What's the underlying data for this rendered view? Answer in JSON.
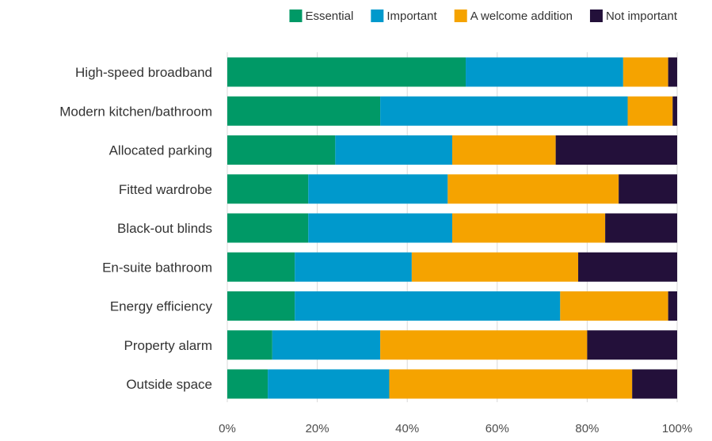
{
  "chart_data": {
    "type": "bar",
    "orientation": "horizontal",
    "stacked": true,
    "categories": [
      "High-speed broadband",
      "Modern kitchen/bathroom",
      "Allocated parking",
      "Fitted wardrobe",
      "Black-out blinds",
      "En-suite bathroom",
      "Energy efficiency",
      "Property alarm",
      "Outside space"
    ],
    "series": [
      {
        "name": "Essential",
        "color": "#009966",
        "values": [
          53,
          34,
          24,
          18,
          18,
          15,
          15,
          10,
          9
        ]
      },
      {
        "name": "Important",
        "color": "#0099cc",
        "values": [
          35,
          55,
          26,
          31,
          32,
          26,
          59,
          24,
          27
        ]
      },
      {
        "name": "A welcome addition",
        "color": "#f5a300",
        "values": [
          10,
          10,
          23,
          38,
          34,
          37,
          24,
          46,
          54
        ]
      },
      {
        "name": "Not important",
        "color": "#23103a",
        "values": [
          2,
          1,
          27,
          13,
          16,
          22,
          2,
          20,
          10
        ]
      }
    ],
    "xlim": [
      0,
      100
    ],
    "x_ticks": [
      "0%",
      "20%",
      "40%",
      "60%",
      "80%",
      "100%"
    ],
    "grid": true,
    "legend_position": "top-right",
    "title": "",
    "xlabel": "",
    "ylabel": ""
  }
}
